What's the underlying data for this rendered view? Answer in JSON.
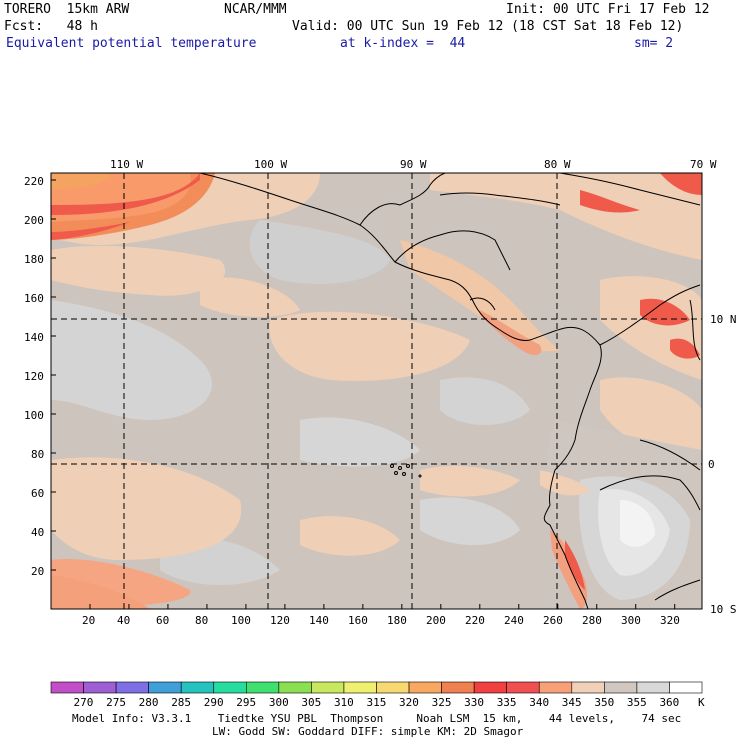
{
  "header": {
    "model": "TORERO  15km ARW",
    "org": "NCAR/MMM",
    "init": "Init: 00 UTC Fri 17 Feb 12",
    "fcst": "Fcst:   48 h",
    "valid": "Valid: 00 UTC Sun 19 Feb 12 (18 CST Sat 18 Feb 12)",
    "field": "Equivalent potential temperature",
    "level": "at k-index =  44",
    "smooth": "sm= 2"
  },
  "map": {
    "lon_labels": [
      "110 W",
      "100 W",
      "90 W",
      "80 W",
      "70 W"
    ],
    "lat_labels": [
      "10 N",
      "0",
      "10 S"
    ],
    "x_ticks": [
      "20",
      "40",
      "60",
      "80",
      "100",
      "120",
      "140",
      "160",
      "180",
      "200",
      "220",
      "240",
      "260",
      "280",
      "300",
      "320"
    ],
    "y_ticks": [
      "220",
      "200",
      "180",
      "160",
      "140",
      "120",
      "100",
      "80",
      "60",
      "40",
      "20"
    ]
  },
  "colorbar": {
    "labels": [
      "270",
      "275",
      "280",
      "285",
      "290",
      "295",
      "300",
      "305",
      "310",
      "315",
      "320",
      "325",
      "330",
      "335",
      "340",
      "345",
      "350",
      "355",
      "360"
    ],
    "unit": "K",
    "colors": [
      "#c24fc8",
      "#9e5fd4",
      "#7f6fe6",
      "#3f9fd8",
      "#26c2c0",
      "#26dda0",
      "#40e070",
      "#8ae050",
      "#c8e860",
      "#f0f070",
      "#f8d870",
      "#f8a860",
      "#f08050",
      "#f04040",
      "#f05050",
      "#f8a078",
      "#f0d0b8",
      "#d0c8c0",
      "#d8d8d8",
      "#ffffff"
    ]
  },
  "footer": {
    "line1": "Model Info: V3.3.1    Tiedtke YSU PBL  Thompson     Noah LSM  15 km,    44 levels,    74 sec",
    "line2": "LW: Godd SW: Goddard DIFF: simple KM: 2D Smagor"
  }
}
